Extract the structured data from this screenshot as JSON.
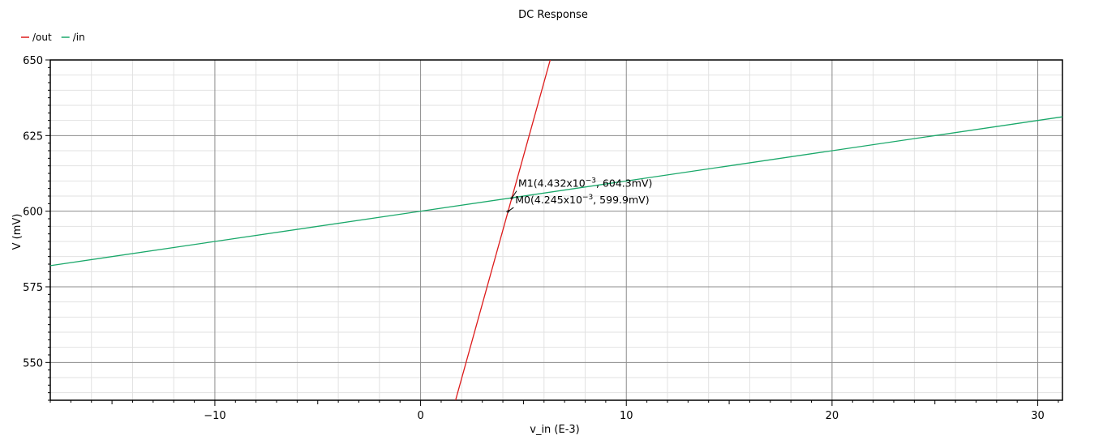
{
  "chart_data": {
    "type": "line",
    "title": "DC Response",
    "xlabel": "v_in (E-3)",
    "ylabel": "V (mV)",
    "xlim": [
      -18,
      31.2
    ],
    "ylim": [
      537.5,
      650
    ],
    "x_ticks": [
      -10,
      0,
      10,
      20,
      30
    ],
    "x_tick_labels": [
      "−10",
      "0",
      "10",
      "20",
      "30"
    ],
    "y_ticks": [
      550,
      575,
      600,
      625,
      650
    ],
    "y_tick_labels": [
      "550",
      "575",
      "600",
      "625",
      "650"
    ],
    "grid": true,
    "legend_position": "top-left",
    "series": [
      {
        "name": "/out",
        "color": "#dd1b1b",
        "points": [
          [
            1.7,
            537.5
          ],
          [
            6.3,
            650
          ]
        ]
      },
      {
        "name": "/in",
        "color": "#1aa86a",
        "points": [
          [
            -18,
            582
          ],
          [
            31.2,
            631.2
          ]
        ]
      }
    ],
    "markers": [
      {
        "name": "M1",
        "x": 4.432,
        "y": 604.3,
        "label_prefix": "M1(4.432x10",
        "label_exp": "−3",
        "label_suffix": ", 604.3mV)"
      },
      {
        "name": "M0",
        "x": 4.245,
        "y": 599.9,
        "label_prefix": "M0(4.245x10",
        "label_exp": "−3",
        "label_suffix": ", 599.9mV)"
      }
    ]
  }
}
